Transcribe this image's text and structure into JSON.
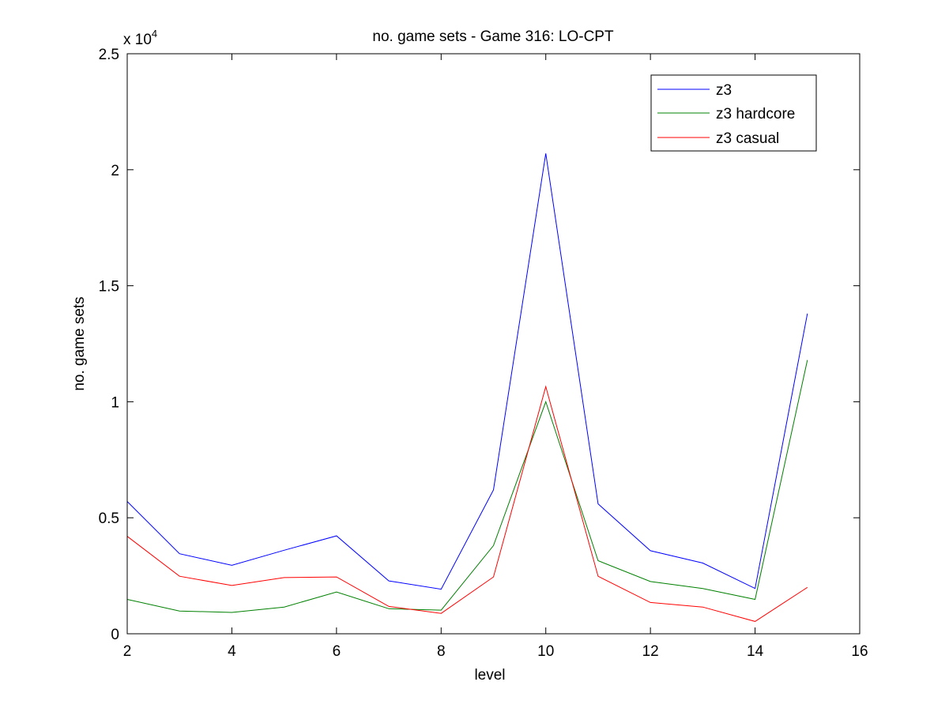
{
  "chart_data": {
    "type": "line",
    "title": "no. game sets - Game 316: LO-CPT",
    "xlabel": "level",
    "ylabel": "no. game sets",
    "y_scale_label": "x 10",
    "y_scale_exponent": "4",
    "xlim": [
      2,
      16
    ],
    "ylim": [
      0,
      25000
    ],
    "xticks": [
      2,
      4,
      6,
      8,
      10,
      12,
      14,
      16
    ],
    "yticks": [
      0,
      5000,
      10000,
      15000,
      20000,
      25000
    ],
    "ytick_labels": [
      "0",
      "0.5",
      "1",
      "1.5",
      "2",
      "2.5"
    ],
    "grid": false,
    "legend_position": "top-right",
    "x": [
      2,
      3,
      4,
      5,
      6,
      7,
      8,
      9,
      10,
      11,
      12,
      13,
      14,
      15
    ],
    "series": [
      {
        "name": "z3",
        "color": "#0000ff",
        "values": [
          5700,
          3450,
          2950,
          3600,
          4220,
          2280,
          1920,
          6200,
          20700,
          5600,
          3580,
          3050,
          1950,
          13800
        ]
      },
      {
        "name": "z3 hardcore",
        "color": "#008000",
        "values": [
          1480,
          980,
          920,
          1150,
          1800,
          1080,
          1020,
          3800,
          10000,
          3150,
          2250,
          1950,
          1480,
          11800
        ]
      },
      {
        "name": "z3 casual",
        "color": "#ff0000",
        "values": [
          4200,
          2480,
          2080,
          2420,
          2450,
          1180,
          880,
          2450,
          10650,
          2480,
          1350,
          1150,
          530,
          2000
        ]
      }
    ]
  }
}
